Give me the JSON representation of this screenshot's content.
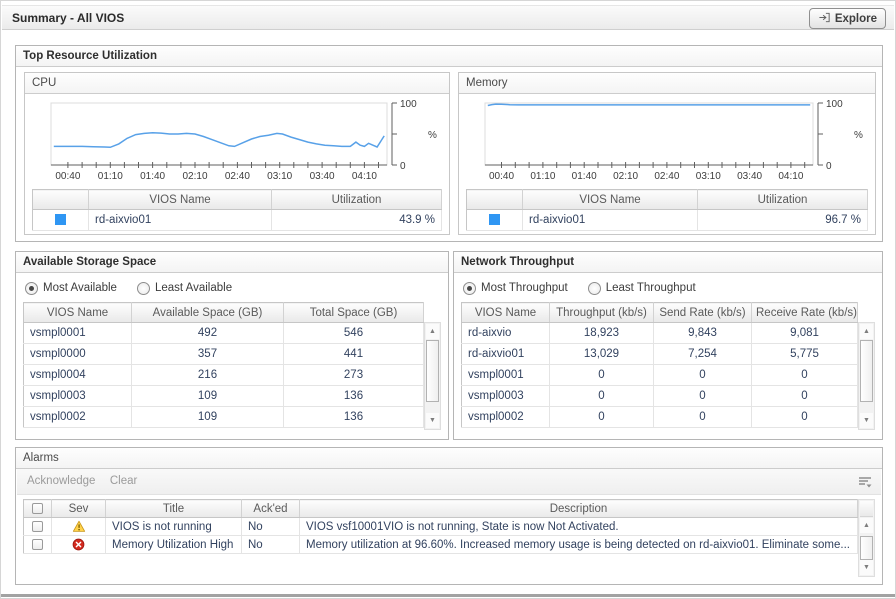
{
  "header": {
    "title": "Summary - All VIOS",
    "explore_label": "Explore"
  },
  "top_resource": {
    "title": "Top Resource Utilization",
    "cpu": {
      "title": "CPU",
      "headers": [
        "",
        "VIOS Name",
        "Utilization"
      ],
      "rows": [
        {
          "color": "#2f96f3",
          "name": "rd-aixvio01",
          "value": "43.9 %"
        }
      ]
    },
    "memory": {
      "title": "Memory",
      "headers": [
        "",
        "VIOS Name",
        "Utilization"
      ],
      "rows": [
        {
          "color": "#2f96f3",
          "name": "rd-aixvio01",
          "value": "96.7 %"
        }
      ]
    }
  },
  "storage": {
    "title": "Available Storage Space",
    "radios": [
      {
        "label": "Most Available",
        "selected": true
      },
      {
        "label": "Least Available",
        "selected": false
      }
    ],
    "headers": [
      "VIOS Name",
      "Available Space (GB)",
      "Total Space (GB)"
    ],
    "rows": [
      {
        "name": "vsmpl0001",
        "available": "492",
        "total": "546"
      },
      {
        "name": "vsmpl0000",
        "available": "357",
        "total": "441"
      },
      {
        "name": "vsmpl0004",
        "available": "216",
        "total": "273"
      },
      {
        "name": "vsmpl0003",
        "available": "109",
        "total": "136"
      },
      {
        "name": "vsmpl0002",
        "available": "109",
        "total": "136"
      }
    ]
  },
  "network": {
    "title": "Network Throughput",
    "radios": [
      {
        "label": "Most Throughput",
        "selected": true
      },
      {
        "label": "Least Throughput",
        "selected": false
      }
    ],
    "headers": [
      "VIOS Name",
      "Throughput (kb/s)",
      "Send Rate (kb/s)",
      "Receive Rate (kb/s)"
    ],
    "rows": [
      {
        "name": "rd-aixvio",
        "throughput": "18,923",
        "send": "9,843",
        "receive": "9,081"
      },
      {
        "name": "rd-aixvio01",
        "throughput": "13,029",
        "send": "7,254",
        "receive": "5,775"
      },
      {
        "name": "vsmpl0001",
        "throughput": "0",
        "send": "0",
        "receive": "0"
      },
      {
        "name": "vsmpl0003",
        "throughput": "0",
        "send": "0",
        "receive": "0"
      },
      {
        "name": "vsmpl0002",
        "throughput": "0",
        "send": "0",
        "receive": "0"
      }
    ]
  },
  "alarms": {
    "title": "Alarms",
    "toolbar": {
      "acknowledge": "Acknowledge",
      "clear": "Clear"
    },
    "headers": {
      "sev": "Sev",
      "title": "Title",
      "acked": "Ack'ed",
      "description": "Description"
    },
    "rows": [
      {
        "sev": "warning",
        "title": "VIOS is not running",
        "acked": "No",
        "description": "VIOS vsf10001VIO is not running, State is now Not Activated."
      },
      {
        "sev": "error",
        "title": "Memory Utilization High",
        "acked": "No",
        "description": "Memory utilization at 96.60%. Increased memory usage is being detected on rd-aixvio01. Eliminate some..."
      }
    ]
  },
  "chart_data": [
    {
      "type": "line",
      "title": "CPU",
      "ylabel": "%",
      "ylim": [
        0,
        100
      ],
      "xlim": [
        28,
        266
      ],
      "x_ticks": [
        {
          "t": 40,
          "label": "00:40"
        },
        {
          "t": 70,
          "label": "01:10"
        },
        {
          "t": 100,
          "label": "01:40"
        },
        {
          "t": 130,
          "label": "02:10"
        },
        {
          "t": 160,
          "label": "02:40"
        },
        {
          "t": 190,
          "label": "03:10"
        },
        {
          "t": 220,
          "label": "03:40"
        },
        {
          "t": 250,
          "label": "04:10"
        }
      ],
      "minor_ticks": {
        "start": 40,
        "step": 10,
        "end": 260
      },
      "legend_position": "bottom-table",
      "grid": false,
      "series": [
        {
          "name": "rd-aixvio01",
          "color": "#58a1e8",
          "points": [
            [
              30,
              30
            ],
            [
              40,
              30
            ],
            [
              50,
              30
            ],
            [
              58,
              29.5
            ],
            [
              66,
              29
            ],
            [
              70,
              28.5
            ],
            [
              76,
              34
            ],
            [
              82,
              43
            ],
            [
              88,
              49
            ],
            [
              94,
              51
            ],
            [
              100,
              52
            ],
            [
              106,
              51.5
            ],
            [
              112,
              50
            ],
            [
              118,
              50
            ],
            [
              124,
              51
            ],
            [
              130,
              50
            ],
            [
              136,
              46
            ],
            [
              142,
              41
            ],
            [
              148,
              36
            ],
            [
              154,
              31
            ],
            [
              158,
              30
            ],
            [
              164,
              36
            ],
            [
              170,
              42
            ],
            [
              176,
              46
            ],
            [
              182,
              48
            ],
            [
              188,
              51
            ],
            [
              192,
              50
            ],
            [
              198,
              45
            ],
            [
              204,
              41
            ],
            [
              210,
              37
            ],
            [
              216,
              34
            ],
            [
              222,
              32
            ],
            [
              228,
              31
            ],
            [
              234,
              30
            ],
            [
              240,
              30
            ],
            [
              244,
              37
            ],
            [
              247,
              32
            ],
            [
              250,
              30
            ],
            [
              253,
              35
            ],
            [
              256,
              32
            ],
            [
              259,
              29
            ],
            [
              264,
              47
            ]
          ]
        }
      ]
    },
    {
      "type": "line",
      "title": "Memory",
      "ylabel": "%",
      "ylim": [
        0,
        100
      ],
      "xlim": [
        28,
        266
      ],
      "x_ticks": [
        {
          "t": 40,
          "label": "00:40"
        },
        {
          "t": 70,
          "label": "01:10"
        },
        {
          "t": 100,
          "label": "01:40"
        },
        {
          "t": 130,
          "label": "02:10"
        },
        {
          "t": 160,
          "label": "02:40"
        },
        {
          "t": 190,
          "label": "03:10"
        },
        {
          "t": 220,
          "label": "03:40"
        },
        {
          "t": 250,
          "label": "04:10"
        }
      ],
      "minor_ticks": {
        "start": 40,
        "step": 10,
        "end": 260
      },
      "legend_position": "bottom-table",
      "grid": false,
      "series": [
        {
          "name": "rd-aixvio01",
          "color": "#58a1e8",
          "points": [
            [
              30,
              96
            ],
            [
              33,
              97.5
            ],
            [
              36,
              98.3
            ],
            [
              40,
              98
            ],
            [
              46,
              97.3
            ],
            [
              52,
              97
            ],
            [
              70,
              97
            ],
            [
              100,
              97
            ],
            [
              130,
              97
            ],
            [
              160,
              97
            ],
            [
              190,
              97
            ],
            [
              220,
              97
            ],
            [
              250,
              97
            ],
            [
              264,
              97
            ]
          ]
        }
      ]
    }
  ]
}
